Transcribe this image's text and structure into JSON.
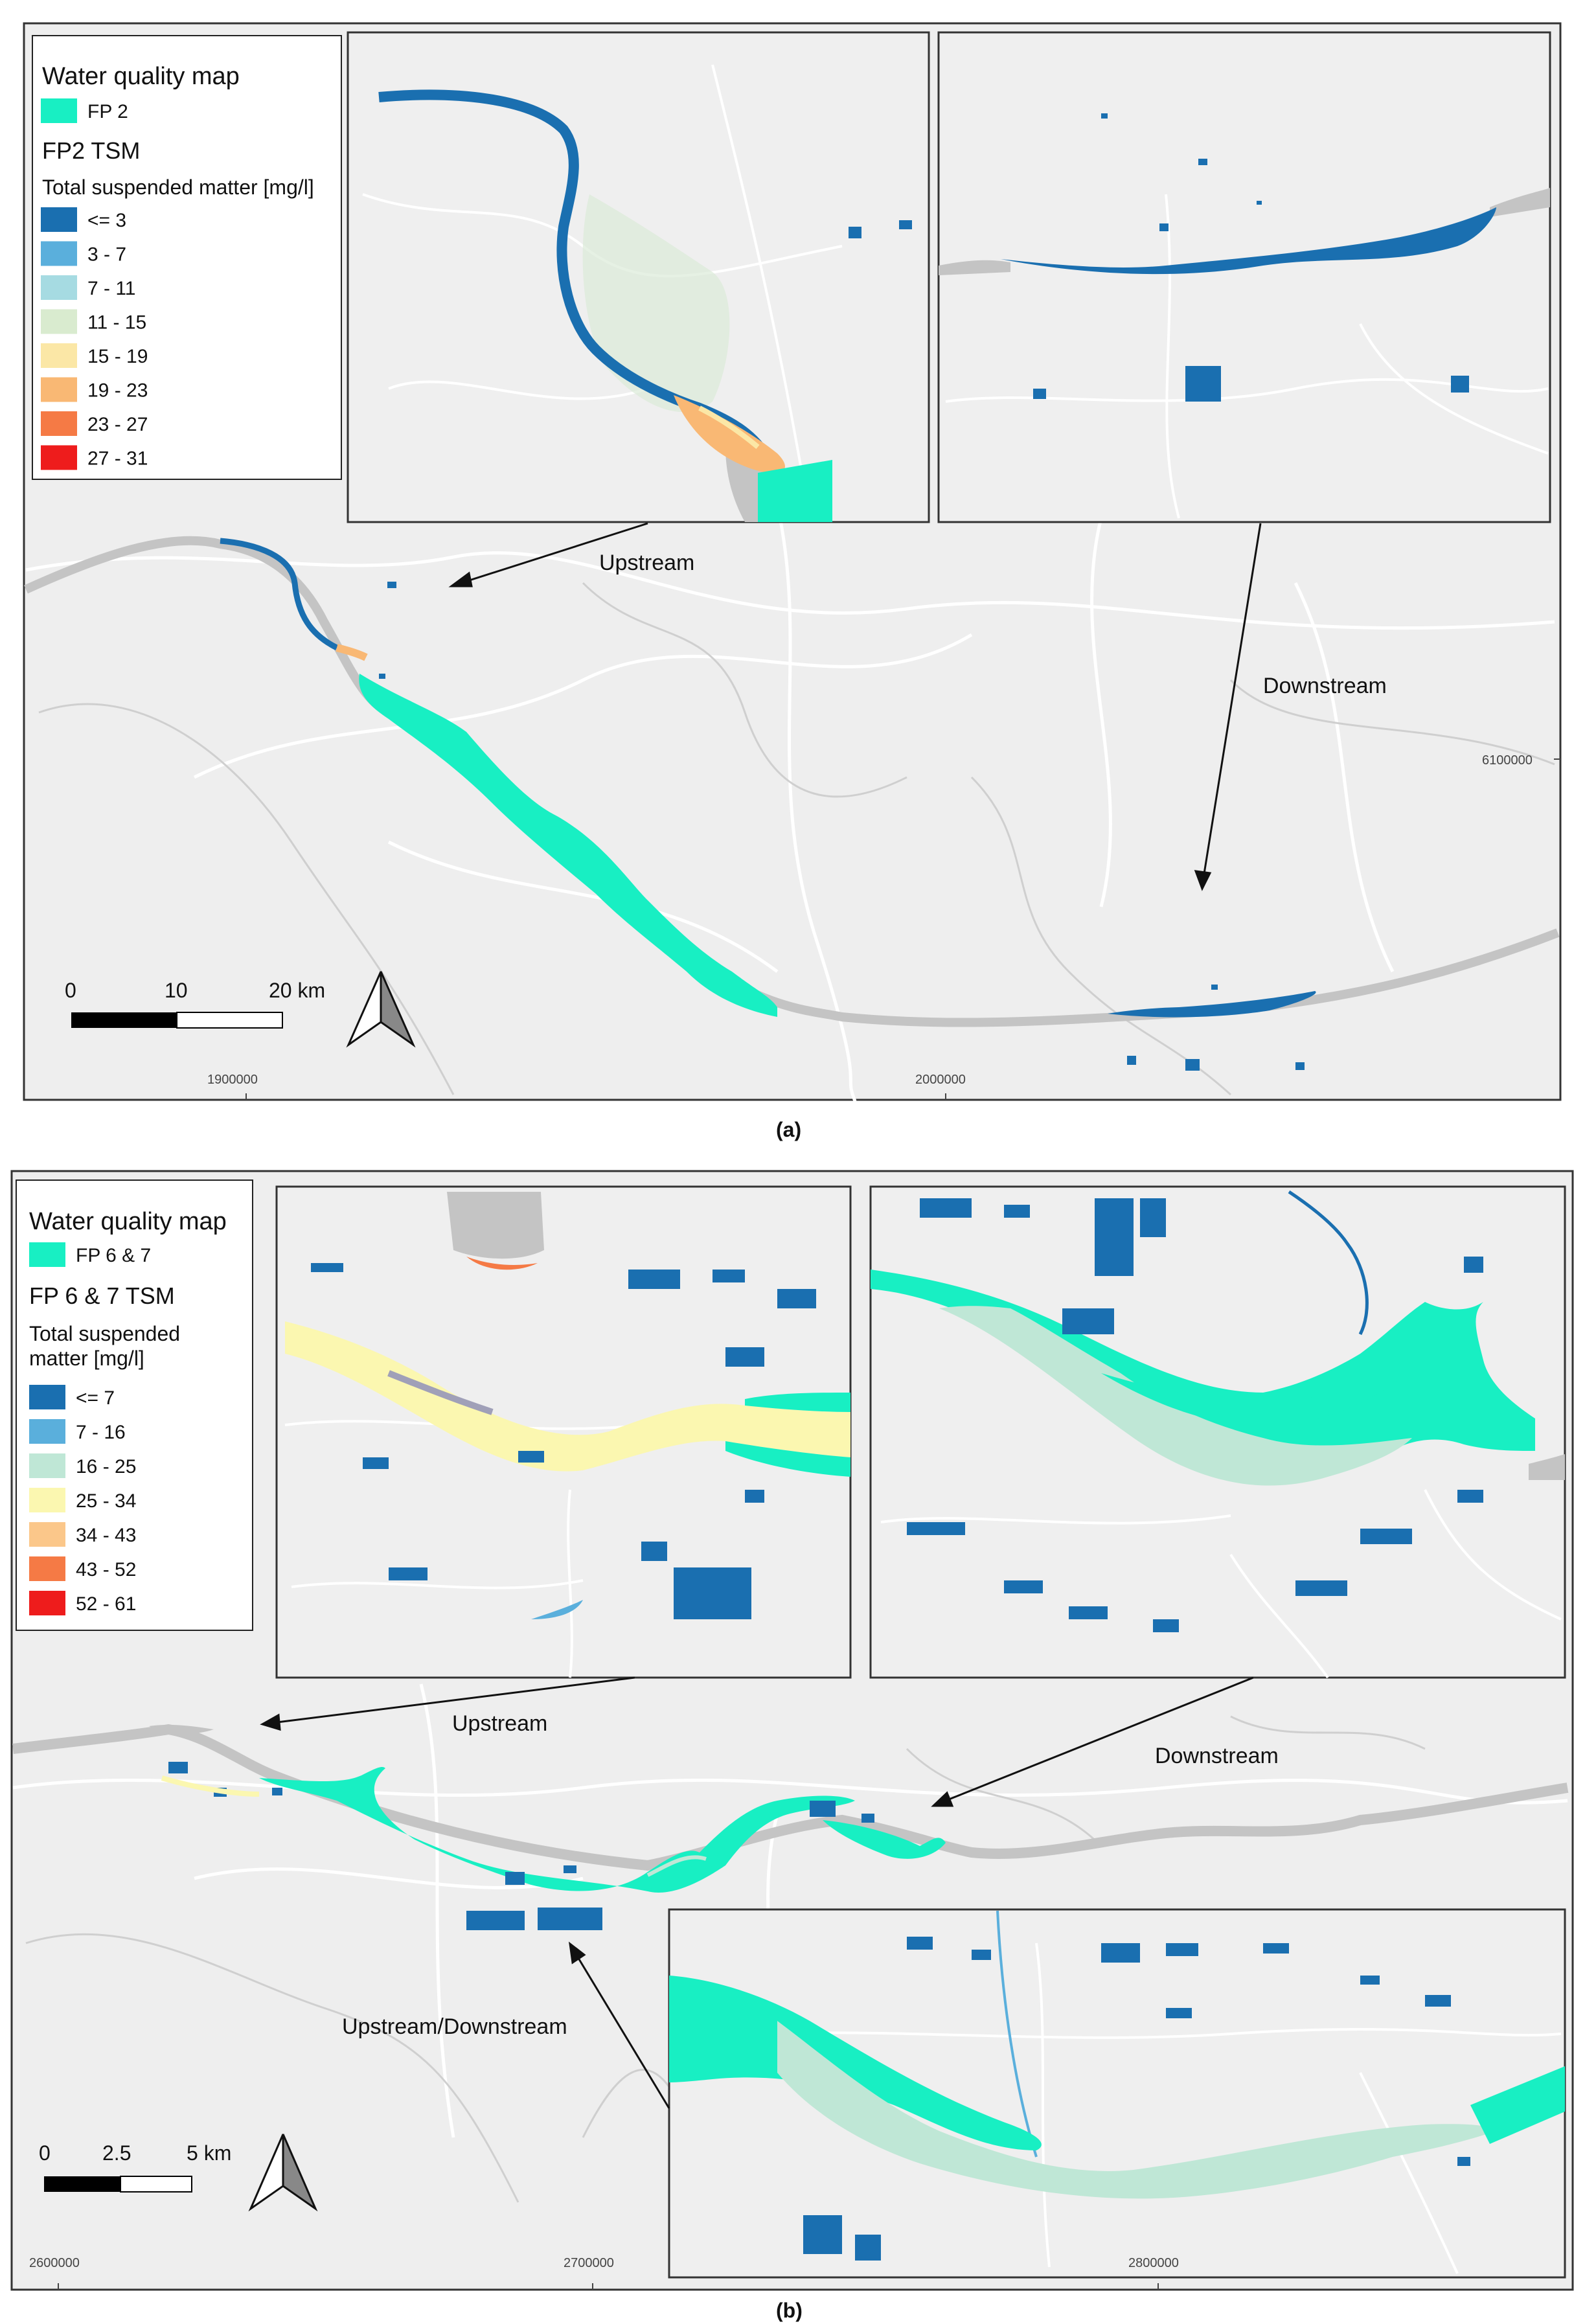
{
  "panel_a": {
    "legend": {
      "title": "Water quality map",
      "fp_label": "FP 2",
      "fp_color": "#18efc3",
      "tsm_title": "FP2 TSM",
      "tsm_sub": "Total suspended matter [mg/l]",
      "classes": [
        {
          "label": "<= 3",
          "color": "#1a6fb0"
        },
        {
          "label": "3 - 7",
          "color": "#5aafdc"
        },
        {
          "label": "7 - 11",
          "color": "#a6dbe2"
        },
        {
          "label": "11 - 15",
          "color": "#d9ebcf"
        },
        {
          "label": "15 - 19",
          "color": "#fbe7a6"
        },
        {
          "label": "19 - 23",
          "color": "#f9b874"
        },
        {
          "label": "23 - 27",
          "color": "#f57a45"
        },
        {
          "label": "27 - 31",
          "color": "#ee1c1c"
        }
      ]
    },
    "labels": {
      "upstream": "Upstream",
      "downstream": "Downstream"
    },
    "coords": {
      "x1": "1900000",
      "x2": "2000000",
      "y1": "6100000"
    },
    "scale": {
      "t0": "0",
      "t1": "10",
      "t2": "20 km"
    },
    "caption": "(a)"
  },
  "panel_b": {
    "legend": {
      "title": "Water quality map",
      "fp_label": "FP 6 & 7",
      "fp_color": "#18efc3",
      "tsm_title": "FP 6 & 7 TSM",
      "tsm_sub1": "Total suspended",
      "tsm_sub2": "matter [mg/l]",
      "classes": [
        {
          "label": "<= 7",
          "color": "#1a6fb0"
        },
        {
          "label": "7 - 16",
          "color": "#5aafdc"
        },
        {
          "label": "16 - 25",
          "color": "#bfe7d6"
        },
        {
          "label": "25 - 34",
          "color": "#fbf7b0"
        },
        {
          "label": "34 - 43",
          "color": "#fbc78a"
        },
        {
          "label": "43 - 52",
          "color": "#f57a45"
        },
        {
          "label": "52 - 61",
          "color": "#ee1c1c"
        }
      ]
    },
    "labels": {
      "upstream": "Upstream",
      "downstream": "Downstream",
      "updown": "Upstream/Downstream"
    },
    "coords": {
      "x1": "2600000",
      "x2": "2700000",
      "x3": "2800000"
    },
    "scale": {
      "t0": "0",
      "t1": "2.5",
      "t2": "5 km"
    },
    "caption": "(b)"
  },
  "colors": {
    "map_bg": "#eeeeee",
    "river_gray": "#c4c4c4",
    "road": "#ffffff",
    "boundary": "#c8c8c8",
    "water_blue": "#1a6fb0",
    "floodplain": "#18efc3"
  }
}
